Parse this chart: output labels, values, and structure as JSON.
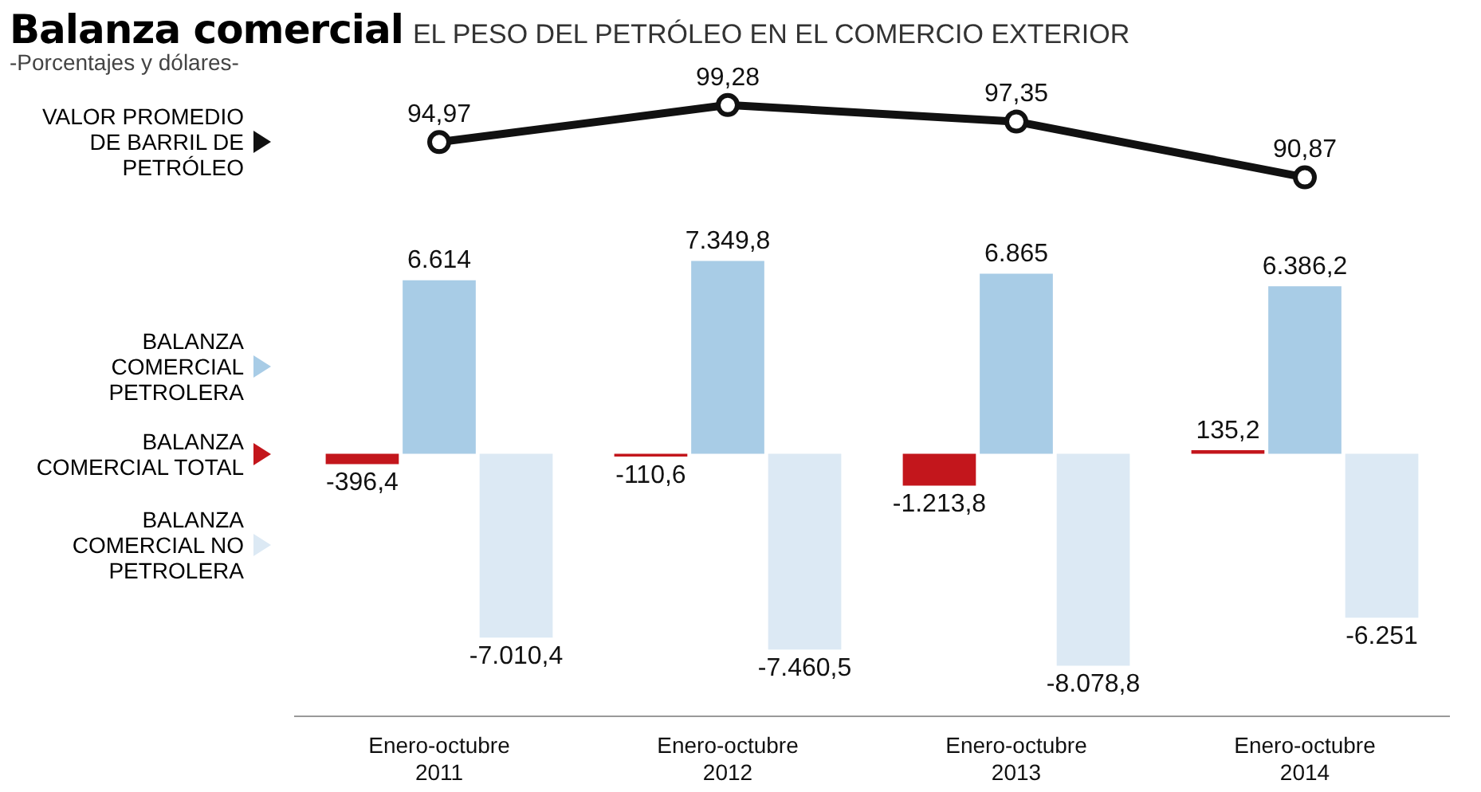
{
  "chart_data": [
    {
      "type": "line",
      "title": "Balanza comercial",
      "subtitle": "EL PESO DEL PETRÓLEO EN EL COMERCIO EXTERIOR",
      "annotations": [
        "-Porcentajes y dólares-"
      ],
      "categories": [
        null,
        null,
        null,
        null
      ],
      "tick_labels": false,
      "legend": "left",
      "marker": "circle",
      "series": [
        {
          "name": "VALOR PROMEDIO DE BARRIL DE PETRÓLEO",
          "color": "#111111",
          "values": [
            94.97,
            99.28,
            97.35,
            90.87
          ],
          "value_labels": [
            "94,97",
            "99,28",
            "97,35",
            "90,87"
          ]
        }
      ]
    },
    {
      "type": "bar",
      "categories": [
        "Enero-octubre\n2011",
        "Enero-octubre\n2012",
        "Enero-octubre\n2013",
        "Enero-octubre\n2014"
      ],
      "tick_labels": "x",
      "legend": "left",
      "series": [
        {
          "name": "BALANZA COMERCIAL TOTAL",
          "color": "#c3161c",
          "values": [
            -396.4,
            -110.6,
            -1213.8,
            135.2
          ],
          "value_labels": [
            "-396,4",
            "-110,6",
            "-1.213,8",
            "135,2"
          ]
        },
        {
          "name": "BALANZA COMERCIAL PETROLERA",
          "color": "#a8cce6",
          "values": [
            6614,
            7349.8,
            6865,
            6386.2
          ],
          "value_labels": [
            "6.614",
            "7.349,8",
            "6.865",
            "6.386,2"
          ]
        },
        {
          "name": "BALANZA COMERCIAL NO PETROLERA",
          "color": "#dce9f4",
          "values": [
            -7010.4,
            -7460.5,
            -8078.8,
            -6251
          ],
          "value_labels": [
            "-7.010,4",
            "-7.460,5",
            "-8.078,8",
            "-6.251"
          ]
        }
      ]
    }
  ]
}
